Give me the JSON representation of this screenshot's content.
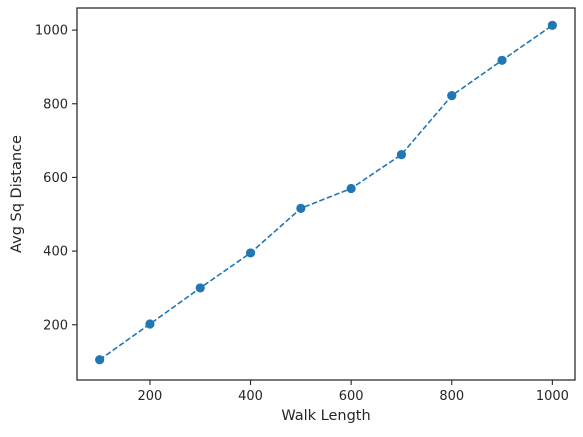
{
  "chart_data": {
    "type": "line",
    "title": "",
    "xlabel": "Walk Length",
    "ylabel": "Avg Sq Distance",
    "x": [
      100,
      200,
      300,
      400,
      500,
      600,
      700,
      800,
      900,
      1000
    ],
    "series": [
      {
        "values": [
          105,
          202,
          300,
          395,
          516,
          570,
          662,
          822,
          918,
          1013
        ],
        "color": "#1f77b4",
        "line_style": "dashed",
        "marker": "circle"
      }
    ],
    "xlim": [
      55,
      1045
    ],
    "ylim": [
      50,
      1060
    ],
    "xticks": [
      200,
      400,
      600,
      800,
      1000
    ],
    "yticks": [
      200,
      400,
      600,
      800,
      1000
    ],
    "grid": false,
    "legend": "none"
  }
}
